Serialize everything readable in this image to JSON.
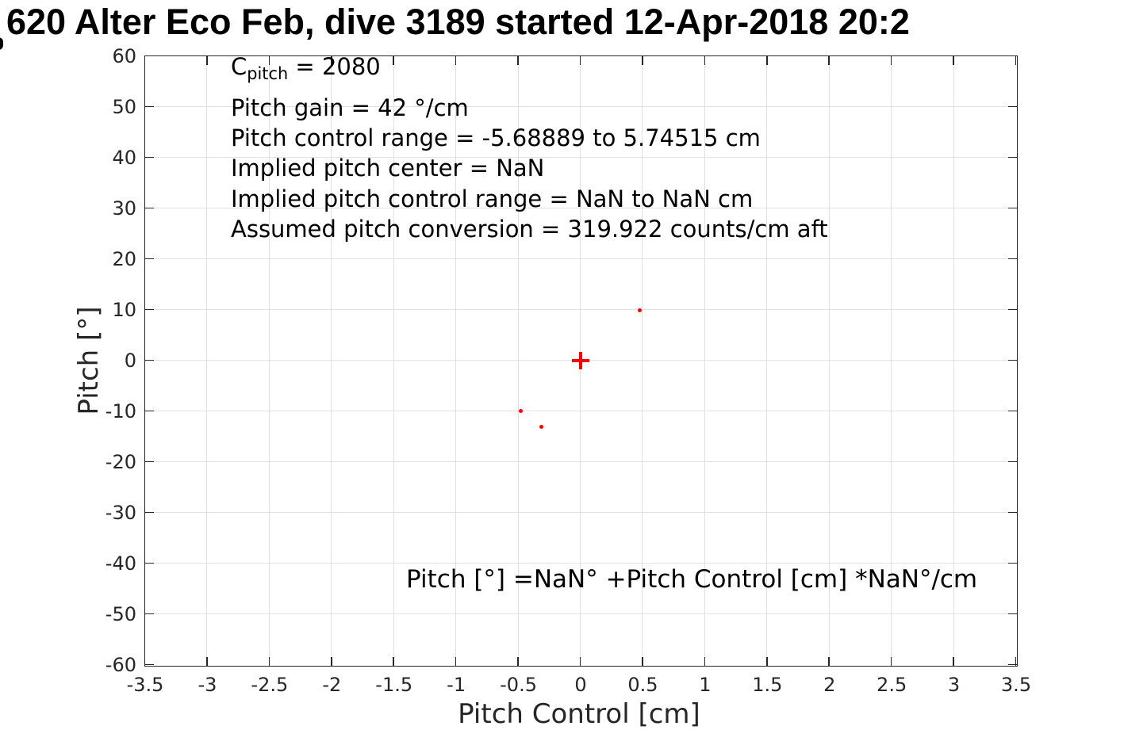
{
  "chart_data": {
    "type": "scatter",
    "title": "620 Alter Eco Feb, dive 3189 started 12-Apr-2018 20:2",
    "title_note": "title is clipped at both left and right image edges",
    "xlabel": "Pitch Control [cm]",
    "ylabel": "Pitch [°]",
    "xlim": [
      -3.5,
      3.5
    ],
    "ylim": [
      -60,
      60
    ],
    "grid": true,
    "x_ticks": [
      -3.5,
      -3,
      -2.5,
      -2,
      -1.5,
      -1,
      -0.5,
      0,
      0.5,
      1,
      1.5,
      2,
      2.5,
      3,
      3.5
    ],
    "x_tick_labels": [
      "-3.5",
      "-3",
      "-2.5",
      "-2",
      "-1.5",
      "-1",
      "-0.5",
      "0",
      "0.5",
      "1",
      "1.5",
      "2",
      "2.5",
      "3",
      "3.5"
    ],
    "y_ticks": [
      -60,
      -50,
      -40,
      -30,
      -20,
      -10,
      0,
      10,
      20,
      30,
      40,
      50,
      60
    ],
    "y_tick_labels": [
      "-60",
      "-50",
      "-40",
      "-30",
      "-20",
      "-10",
      "0",
      "10",
      "20",
      "30",
      "40",
      "50",
      "60"
    ],
    "series": [
      {
        "name": "pitch-vs-pitch-control-observations",
        "marker": "dot",
        "color": "#ff0000",
        "points": [
          [
            0.48,
            9.9
          ],
          [
            -0.48,
            -10.0
          ],
          [
            -0.31,
            -13.1
          ]
        ]
      },
      {
        "name": "pitch-center-marker",
        "marker": "plus",
        "color": "#ff0000",
        "points": [
          [
            0,
            0
          ]
        ]
      }
    ],
    "annotations": {
      "stats": {
        "line1": {
          "base": "C",
          "sub": "pitch",
          "rest": " = 2080"
        },
        "lines": [
          "Pitch gain = 42 °/cm",
          "Pitch control range = -5.68889 to 5.74515 cm",
          "Implied pitch center = NaN",
          "Implied pitch control range = NaN to NaN cm",
          "Assumed pitch conversion = 319.922 counts/cm aft"
        ]
      },
      "equation": "Pitch [°] =NaN° +Pitch Control [cm] *NaN°/cm"
    },
    "colors": {
      "marker": "#ff0000",
      "grid": "#e0e0e0",
      "axis": "#262626",
      "text": "#000000"
    },
    "legend": "none"
  }
}
